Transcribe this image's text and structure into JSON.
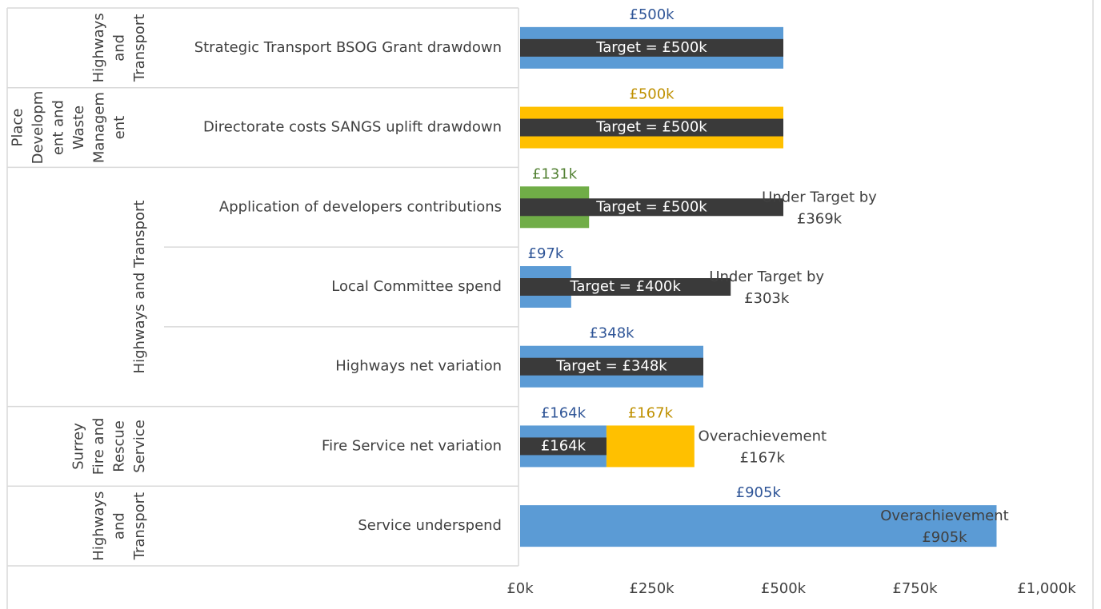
{
  "chart_data": {
    "type": "bar",
    "groups": [
      {
        "label": [
          "Highways",
          "and",
          "Transport"
        ],
        "categories": [
          "Strategic Transport BSOG Grant drawdown"
        ]
      },
      {
        "label": [
          "Place",
          "Developm",
          "ent and",
          "Waste",
          "Managem",
          "ent"
        ],
        "categories": [
          "Directorate costs SANGS uplift drawdown"
        ]
      },
      {
        "label": [
          "Highways and Transport"
        ],
        "categories": [
          "Application of developers contributions",
          "Local Committee spend",
          "Highways net variation"
        ]
      },
      {
        "label": [
          "Surrey",
          "Fire and",
          "Rescue",
          "Service"
        ],
        "categories": [
          "Fire Service net variation"
        ]
      },
      {
        "label": [
          "Highways",
          "and",
          "Transport"
        ],
        "categories": [
          "Service underspend"
        ]
      }
    ],
    "series": [
      {
        "values": [
          500,
          500,
          131,
          97,
          348,
          164,
          905
        ],
        "colors": [
          "#5b9bd5",
          "#ffc000",
          "#70ad47",
          "#5b9bd5",
          "#5b9bd5",
          "#5b9bd5",
          "#5b9bd5"
        ],
        "label_colors": [
          "#2f5597",
          "#bf9000",
          "#548235",
          "#2f5597",
          "#2f5597",
          "#2f5597",
          "#2f5597"
        ],
        "value_labels": [
          "£500k",
          "£500k",
          "£131k",
          "£97k",
          "£348k",
          "£164k",
          "£905k"
        ]
      },
      {
        "values": [
          null,
          null,
          null,
          null,
          null,
          167,
          null
        ],
        "color": "#ffc000",
        "label_color": "#bf9000",
        "value_labels": [
          null,
          null,
          null,
          null,
          null,
          "£167k",
          null
        ]
      },
      {
        "values": [
          500,
          500,
          500,
          400,
          348,
          164,
          null
        ],
        "color": "#3a3a3a",
        "label_color": "#ffffff",
        "value_labels": [
          "Target =  £500k",
          "Target =  £500k",
          "Target =  £500k",
          "Target =  £400k",
          "Target = £348k",
          "£164k",
          null
        ]
      }
    ],
    "annotations": [
      null,
      null,
      [
        "Under Target by",
        "£369k"
      ],
      [
        "Under Target by",
        "£303k"
      ],
      null,
      [
        "Overachievement",
        "£167k"
      ],
      [
        "Overachievement",
        "£905k"
      ]
    ],
    "xlim": [
      0,
      1000
    ],
    "xticks": [
      {
        "value": 0,
        "label": "£0k"
      },
      {
        "value": 250,
        "label": "£250k"
      },
      {
        "value": 500,
        "label": "£500k"
      },
      {
        "value": 750,
        "label": "£750k"
      },
      {
        "value": 1000,
        "label": "£1,000k"
      }
    ]
  }
}
